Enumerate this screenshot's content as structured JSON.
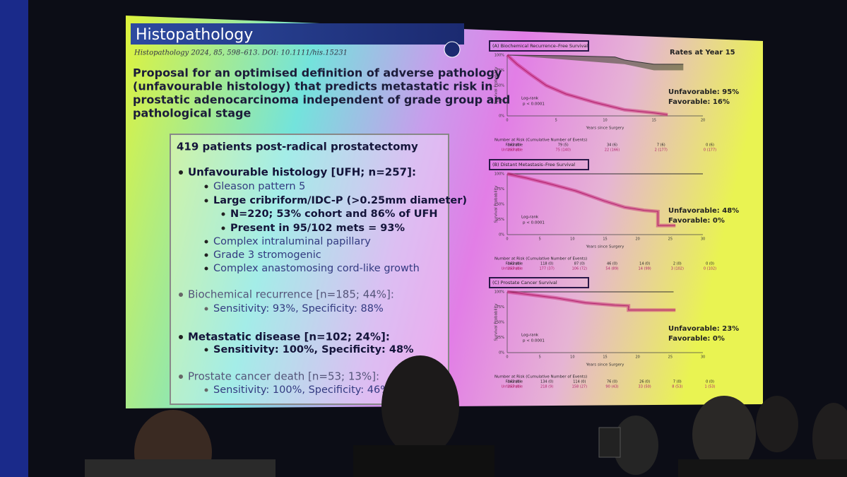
{
  "slide": {
    "header": {
      "title": "Histopathology",
      "citation": "Histopathology 2024, 85, 598–613. DOI: 10.1111/his.15231"
    },
    "title_lines": [
      "Proposal for an optimised definition of adverse pathology",
      "(unfavourable histology) that predicts metastatic risk in",
      "prostatic adenocarcinoma independent of grade group and",
      "pathological stage"
    ],
    "box": {
      "heading": "419 patients post-radical prostatectomy",
      "items": [
        "Unfavourable histology [UFH; n=257]:",
        "Gleason pattern 5",
        "Large cribriform/IDC-P (>0.25mm diameter)",
        "N=220; 53% cohort and 86% of UFH",
        "Present in 95/102 mets = 93%",
        "Complex intraluminal papillary",
        "Grade 3 stromogenic",
        "Complex anastomosing cord-like growth",
        "Biochemical recurrence [n=185; 44%]:",
        "Sensitivity: 93%, Specificity: 88%",
        "Metastatic disease [n=102; 24%]:",
        "Sensitivity: 100%, Specificity: 48%",
        "Prostate cancer death [n=53; 13%]:",
        "Sensitivity: 100%, Specificity: 46%"
      ]
    },
    "rates_title": "Rates at Year 15",
    "panels": [
      {
        "label": "(A) Biochemical Recurrence–Free Survival",
        "y_label": "Survival Probability",
        "yticks": [
          "0%",
          "25%",
          "50%",
          "75%",
          "100%"
        ],
        "xticks": [
          "0",
          "5",
          "10",
          "15",
          "20"
        ],
        "x_label": "Years since Surgery",
        "logrank": "Log-rank",
        "p": "p < 0.0001",
        "unfavorable": "Unfavorable: 95%",
        "favorable": "Favorable: 16%",
        "risk_header": "Number at Risk (Cumulative Number of Events)",
        "risk_rows": [
          {
            "name": "Favorable",
            "cells": [
              "162 (0)",
              "79 (5)",
              "34 (6)",
              "7 (6)",
              "0 (6)"
            ]
          },
          {
            "name": "Unfavorable",
            "cells": [
              "257 (0)",
              "75 (140)",
              "22 (166)",
              "2 (177)",
              "0 (177)"
            ]
          }
        ]
      },
      {
        "label": "(B) Distant Metastasis–Free Survival",
        "y_label": "Survival Probability",
        "yticks": [
          "0%",
          "25%",
          "50%",
          "75%",
          "100%"
        ],
        "xticks": [
          "0",
          "5",
          "10",
          "15",
          "20",
          "25",
          "30"
        ],
        "x_label": "Years since Surgery",
        "logrank": "Log-rank",
        "p": "p < 0.0001",
        "unfavorable": "Unfavorable: 48%",
        "favorable": "Favorable: 0%",
        "risk_header": "Number at Risk (Cumulative Number of Events)",
        "risk_rows": [
          {
            "name": "Favorable",
            "cells": [
              "162 (0)",
              "118 (0)",
              "87 (0)",
              "46 (0)",
              "14 (0)",
              "2 (0)",
              "0 (0)"
            ]
          },
          {
            "name": "Unfavorable",
            "cells": [
              "257 (0)",
              "177 (37)",
              "106 (72)",
              "54 (89)",
              "14 (99)",
              "3 (102)",
              "0 (102)"
            ]
          }
        ]
      },
      {
        "label": "(C) Prostate Cancer Survival",
        "y_label": "Survival Probability",
        "yticks": [
          "0%",
          "25%",
          "50%",
          "75%",
          "100%"
        ],
        "xticks": [
          "0",
          "5",
          "10",
          "15",
          "20",
          "25",
          "30"
        ],
        "x_label": "Years since Surgery",
        "logrank": "Log-rank",
        "p": "p < 0.0001",
        "unfavorable": "Unfavorable: 23%",
        "favorable": "Favorable: 0%",
        "risk_header": "Number at Risk (Cumulative Number of Events)",
        "risk_rows": [
          {
            "name": "Favorable",
            "cells": [
              "162 (0)",
              "134 (0)",
              "114 (0)",
              "76 (0)",
              "26 (0)",
              "7 (0)",
              "0 (0)"
            ]
          },
          {
            "name": "Unfavorable",
            "cells": [
              "257 (0)",
              "218 (9)",
              "158 (27)",
              "90 (43)",
              "33 (50)",
              "8 (53)",
              "1 (53)"
            ]
          }
        ]
      }
    ]
  }
}
